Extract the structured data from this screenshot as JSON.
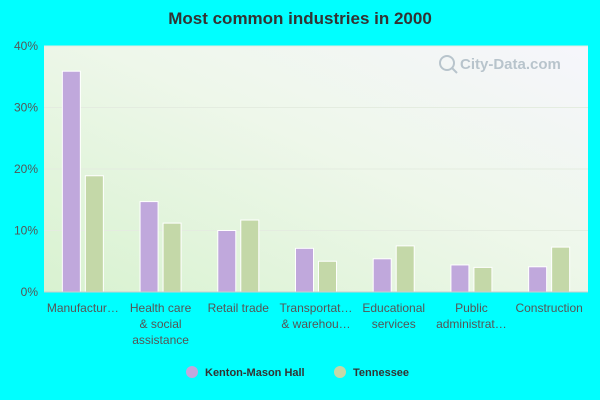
{
  "chart_data": {
    "type": "bar",
    "title": "Most common industries in 2000",
    "categories": [
      [
        "Manufactur…"
      ],
      [
        "Health care",
        "& social",
        "assistance"
      ],
      [
        "Retail trade"
      ],
      [
        "Transportat…",
        "& warehou…"
      ],
      [
        "Educational",
        "services"
      ],
      [
        "Public",
        "administrat…"
      ],
      [
        "Construction"
      ]
    ],
    "series": [
      {
        "name": "Kenton-Mason Hall",
        "color": "#c0a8dc",
        "values": [
          35.9,
          14.7,
          10.0,
          7.1,
          5.4,
          4.4,
          4.1
        ]
      },
      {
        "name": "Tennessee",
        "color": "#c4d8a8",
        "values": [
          18.9,
          11.2,
          11.7,
          5.0,
          7.5,
          4.0,
          7.3
        ]
      }
    ],
    "yticks": [
      "0%",
      "10%",
      "20%",
      "30%",
      "40%"
    ],
    "ylim": [
      0,
      40
    ],
    "watermark": "City-Data.com",
    "legend_position": "bottom-center"
  }
}
